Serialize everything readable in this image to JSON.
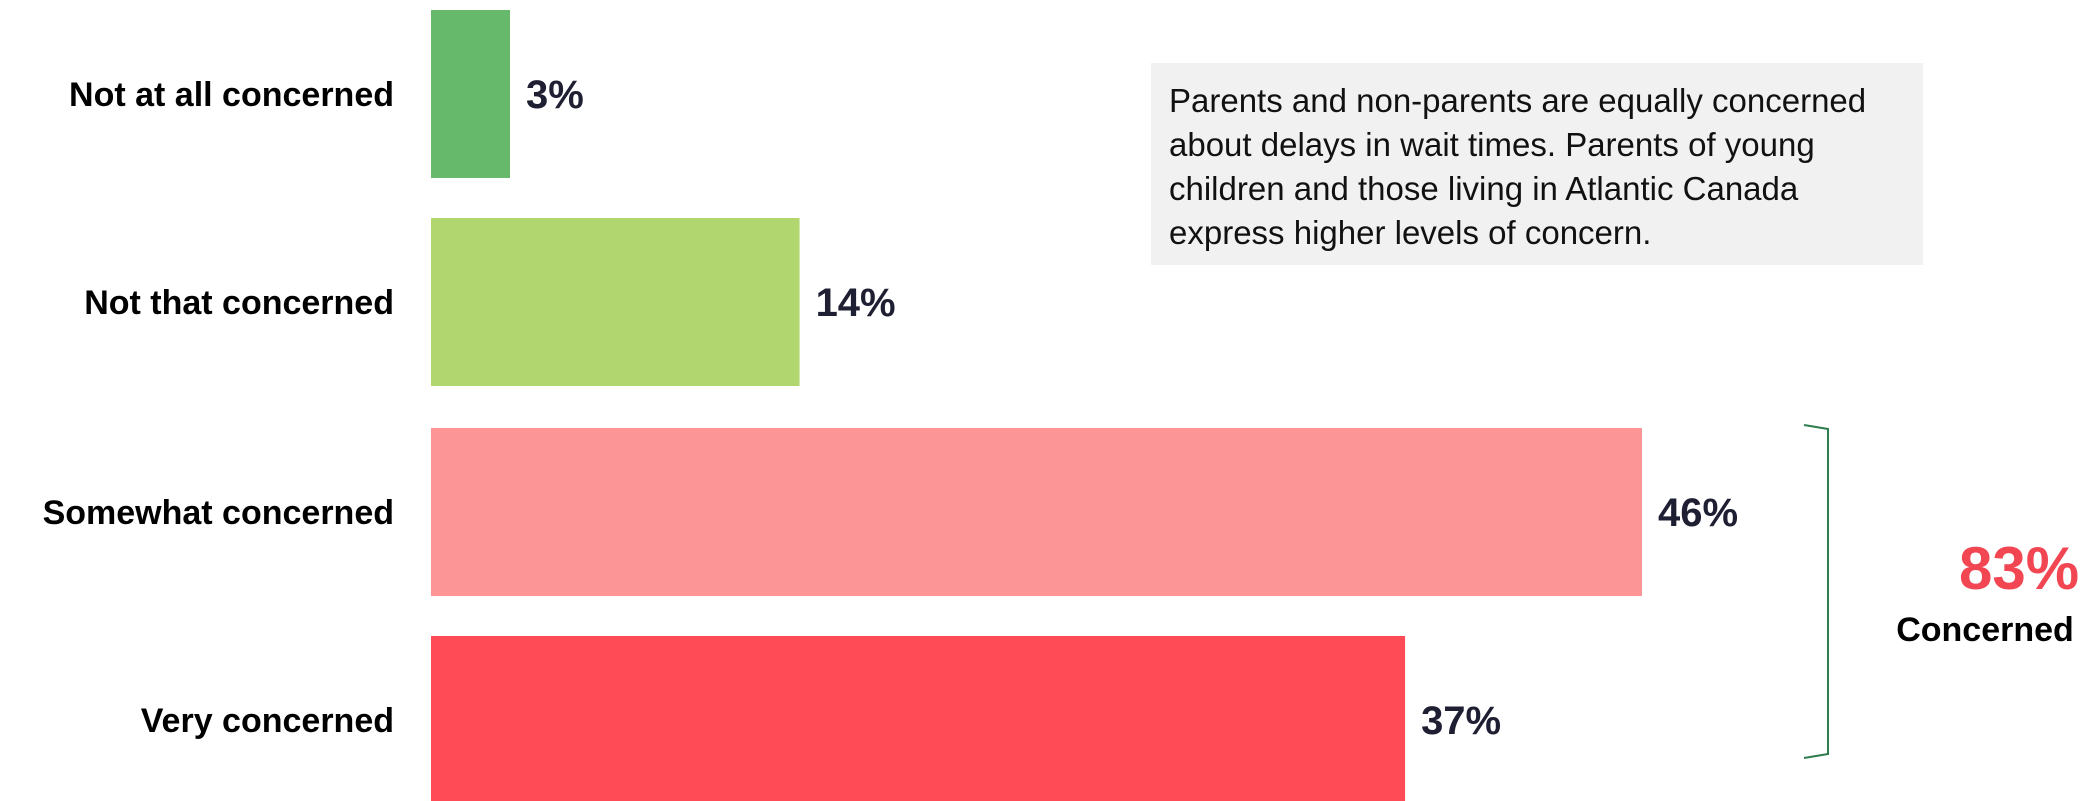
{
  "chart_data": {
    "type": "bar",
    "orientation": "horizontal",
    "categories": [
      "Not at all concerned",
      "Not that concerned",
      "Somewhat concerned",
      "Very concerned"
    ],
    "values": [
      3,
      14,
      46,
      37
    ],
    "value_labels": [
      "3%",
      "14%",
      "46%",
      "37%"
    ],
    "colors": [
      "#66b86a",
      "#b1d56f",
      "#fc9596",
      "#ff4b55"
    ],
    "xlim": [
      0,
      46
    ],
    "grid": false,
    "bracket": {
      "covers": [
        "Somewhat concerned",
        "Very concerned"
      ],
      "total_label": "83%",
      "total_caption": "Concerned",
      "color": "#2e7d4f",
      "total_color": "#f24653"
    }
  },
  "note": {
    "text": "Parents and non-parents are equally concerned about delays in wait times. Parents of young children and those living in Atlantic Canada express higher levels of concern."
  }
}
